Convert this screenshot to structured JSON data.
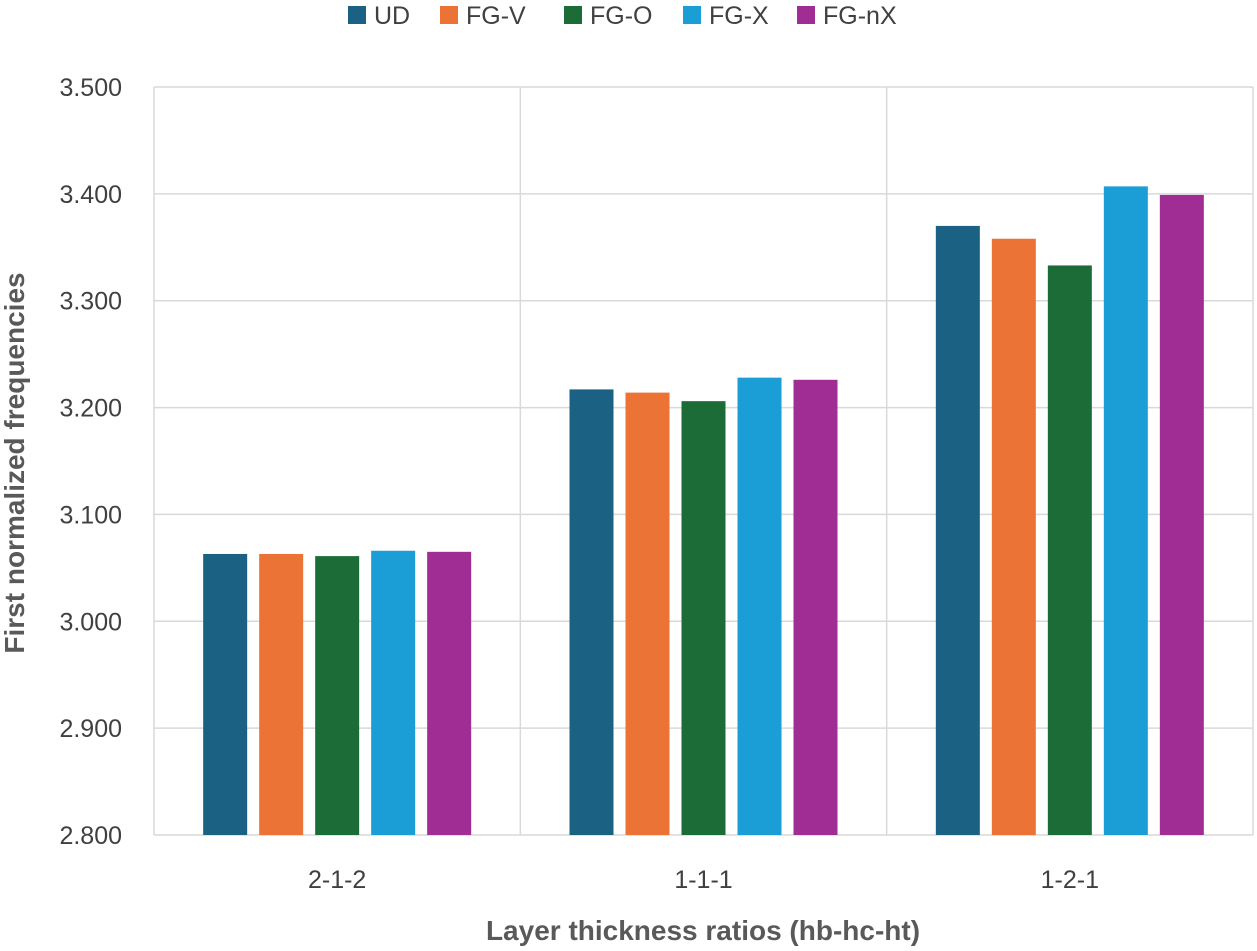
{
  "chart_data": {
    "type": "bar",
    "title": "",
    "xlabel": "Layer thickness ratios (hb-hc-ht)",
    "ylabel": "First normalized frequencies",
    "categories": [
      "2-1-2",
      "1-1-1",
      "1-2-1"
    ],
    "ylim": [
      2.8,
      3.5
    ],
    "yticks": [
      2.8,
      2.9,
      3.0,
      3.1,
      3.2,
      3.3,
      3.4,
      3.5
    ],
    "ytick_labels": [
      "2.800",
      "2.900",
      "3.000",
      "3.100",
      "3.200",
      "3.300",
      "3.400",
      "3.500"
    ],
    "grid": true,
    "legend_position": "top",
    "series": [
      {
        "name": "UD",
        "color": "#1b6184",
        "values": [
          3.063,
          3.217,
          3.37
        ]
      },
      {
        "name": "FG-V",
        "color": "#eb7335",
        "values": [
          3.063,
          3.214,
          3.358
        ]
      },
      {
        "name": "FG-O",
        "color": "#1b6c36",
        "values": [
          3.061,
          3.206,
          3.333
        ]
      },
      {
        "name": "FG-X",
        "color": "#1b9ed6",
        "values": [
          3.066,
          3.228,
          3.407
        ]
      },
      {
        "name": "FG-nX",
        "color": "#a02d93",
        "values": [
          3.065,
          3.226,
          3.399
        ]
      }
    ]
  }
}
